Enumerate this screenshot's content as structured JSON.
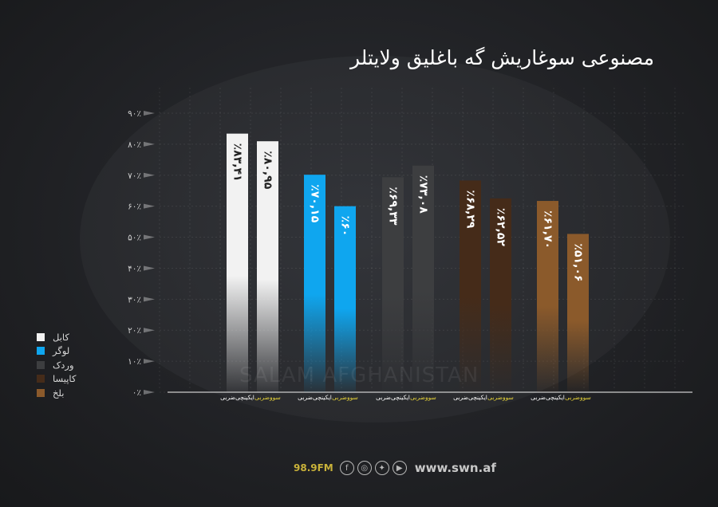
{
  "title": "مصنوعی سوغاریش گه باغلیق ولایتلر",
  "watermark": "SALAM AFGHANISTAN",
  "footer": {
    "fm": "98.9FM",
    "site": "www.swn.af",
    "icons": [
      "facebook-icon",
      "instagram-icon",
      "twitter-icon",
      "youtube-icon"
    ]
  },
  "colors": {
    "background": "#1f2023",
    "axis": "#cccccc",
    "yellow_label": "#e6d33a"
  },
  "chart_data": {
    "type": "bar",
    "ylim": [
      0,
      90
    ],
    "yticks": [
      "۰٪",
      "۱۰٪",
      "۲۰٪",
      "۳۰٪",
      "۴۰٪",
      "۵۰٪",
      "۶۰٪",
      "۷۰٪",
      "۸۰٪",
      "۹۰٪"
    ],
    "grid": true,
    "legend_position": "bottom-left",
    "groups": [
      {
        "province": "کابل",
        "color": "#f2f2f2",
        "label_color": "#222222",
        "bars": [
          {
            "label": "ایکینچی‌ضربی",
            "label_color": "#ffffff",
            "value": 83.41,
            "value_label": "٪۸۳,۴۱"
          },
          {
            "label": "سووضربی",
            "label_color": "#e6d33a",
            "value": 80.95,
            "value_label": "٪۸۰,۹۵"
          }
        ]
      },
      {
        "province": "لوگر",
        "color": "#0fa6ef",
        "label_color": "#ffffff",
        "bars": [
          {
            "label": "ایکینچی‌ضربی",
            "label_color": "#ffffff",
            "value": 70.15,
            "value_label": "٪۷۰,۱۵"
          },
          {
            "label": "سووضربی",
            "label_color": "#e6d33a",
            "value": 60,
            "value_label": "٪۶۰"
          }
        ]
      },
      {
        "province": "وردک",
        "color": "#3d3e40",
        "label_color": "#ffffff",
        "bars": [
          {
            "label": "ایکینچی‌ضربی",
            "label_color": "#ffffff",
            "value": 69.33,
            "value_label": "٪۶۹,۳۳"
          },
          {
            "label": "سووضربی",
            "label_color": "#e6d33a",
            "value": 73.08,
            "value_label": "٪۷۳,۰۸"
          }
        ]
      },
      {
        "province": "کاپیسا",
        "color": "#452b19",
        "label_color": "#ffffff",
        "bars": [
          {
            "label": "ایکینچی‌ضربی",
            "label_color": "#ffffff",
            "value": 68.29,
            "value_label": "٪۶۸,۲۹"
          },
          {
            "label": "سووضربی",
            "label_color": "#e6d33a",
            "value": 62.52,
            "value_label": "٪۶۲,۵۲"
          }
        ]
      },
      {
        "province": "بلخ",
        "color": "#8b5a2b",
        "label_color": "#ffffff",
        "bars": [
          {
            "label": "ایکینچی‌ضربی",
            "label_color": "#ffffff",
            "value": 61.7,
            "value_label": "٪۶۱,۷۰"
          },
          {
            "label": "سووضربی",
            "label_color": "#e6d33a",
            "value": 51.06,
            "value_label": "٪۵۱,۰۶"
          }
        ]
      }
    ]
  }
}
